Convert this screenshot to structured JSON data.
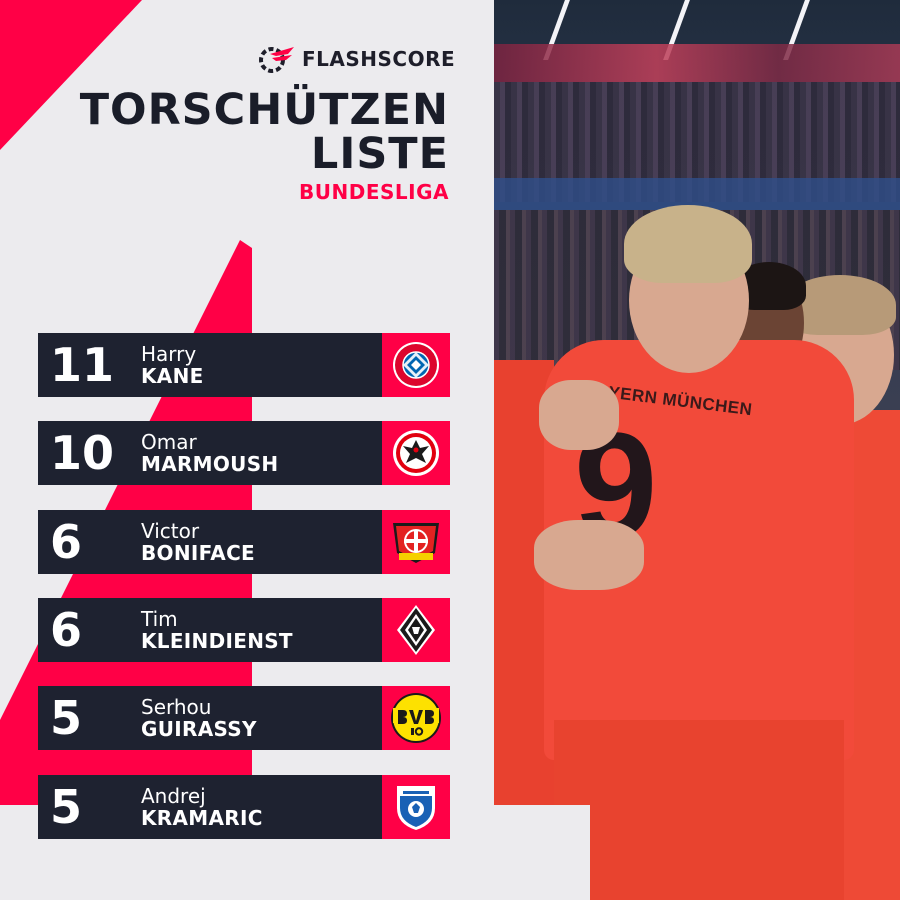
{
  "brand": {
    "name": "FLASHSCORE",
    "icon": "flashscore-logo-icon"
  },
  "title": {
    "line1": "TORSCHÜTZEN",
    "line2": "LISTE"
  },
  "subtitle": "BUNDESLIGA",
  "colors": {
    "accent": "#ff0046",
    "dark": "#1e2230",
    "background": "#ecebee"
  },
  "scorers": [
    {
      "goals": "11",
      "first": "Harry",
      "last": "KANE",
      "club_icon": "fc-bayern-muenchen-crest-icon"
    },
    {
      "goals": "10",
      "first": "Omar",
      "last": "MARMOUSH",
      "club_icon": "eintracht-frankfurt-crest-icon"
    },
    {
      "goals": "6",
      "first": "Victor",
      "last": "BONIFACE",
      "club_icon": "bayer-leverkusen-crest-icon"
    },
    {
      "goals": "6",
      "first": "Tim",
      "last": "KLEINDIENST",
      "club_icon": "borussia-moenchengladbach-crest-icon"
    },
    {
      "goals": "5",
      "first": "Serhou",
      "last": "GUIRASSY",
      "club_icon": "borussia-dortmund-crest-icon"
    },
    {
      "goals": "5",
      "first": "Andrej",
      "last": "KRAMARIC",
      "club_icon": "tsg-hoffenheim-crest-icon"
    }
  ],
  "photo": {
    "jersey_text": "BAYERN MÜNCHEN",
    "jersey_number": "9"
  }
}
